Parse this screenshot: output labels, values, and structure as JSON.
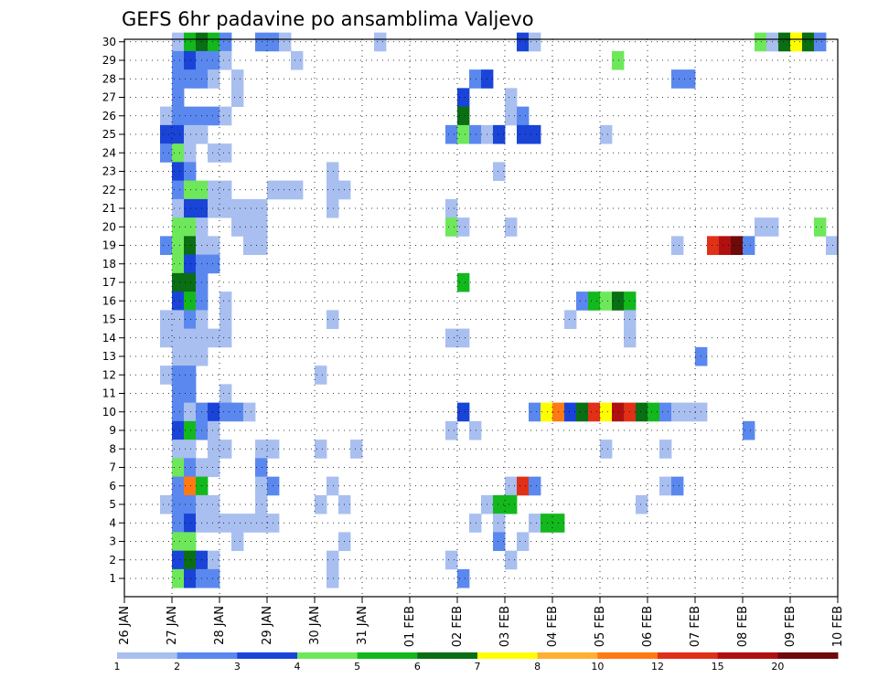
{
  "chart_data": {
    "type": "heatmap",
    "title": "GEFS 6hr padavine po ansamblima Valjevo",
    "xlabel": "",
    "ylabel": "",
    "x_tick_labels": [
      "26 JAN",
      "27 JAN",
      "28 JAN",
      "29 JAN",
      "30 JAN",
      "31 JAN",
      "01 FEB",
      "02 FEB",
      "03 FEB",
      "04 FEB",
      "05 FEB",
      "06 FEB",
      "07 FEB",
      "08 FEB",
      "09 FEB",
      "10 FEB"
    ],
    "y_range": [
      1,
      30
    ],
    "x_steps": 60,
    "x_step_hours": 6,
    "grid": true,
    "legend": {
      "position": "bottom",
      "labels": [
        "1",
        "2",
        "3",
        "4",
        "5",
        "6",
        "7",
        "8",
        "10",
        "12",
        "15",
        "20"
      ],
      "colors": [
        "#a8bff0",
        "#5a88ee",
        "#1a44d8",
        "#6ee85a",
        "#12b81c",
        "#0a6e14",
        "#ffff00",
        "#ffb030",
        "#ff7a14",
        "#e03018",
        "#b01010",
        "#6e0a0a"
      ]
    },
    "cells": [
      [
        30,
        4,
        1
      ],
      [
        30,
        5,
        5
      ],
      [
        30,
        6,
        6
      ],
      [
        30,
        7,
        5
      ],
      [
        30,
        8,
        2
      ],
      [
        30,
        11,
        2
      ],
      [
        30,
        12,
        2
      ],
      [
        30,
        13,
        1
      ],
      [
        30,
        21,
        1
      ],
      [
        30,
        33,
        3
      ],
      [
        30,
        34,
        1
      ],
      [
        30,
        53,
        4
      ],
      [
        30,
        54,
        1
      ],
      [
        30,
        55,
        6
      ],
      [
        30,
        56,
        7
      ],
      [
        30,
        57,
        6
      ],
      [
        30,
        58,
        2
      ],
      [
        29,
        4,
        2
      ],
      [
        29,
        5,
        3
      ],
      [
        29,
        6,
        2
      ],
      [
        29,
        7,
        2
      ],
      [
        29,
        8,
        1
      ],
      [
        29,
        14,
        1
      ],
      [
        29,
        41,
        4
      ],
      [
        28,
        4,
        2
      ],
      [
        28,
        5,
        2
      ],
      [
        28,
        6,
        2
      ],
      [
        28,
        7,
        1
      ],
      [
        28,
        9,
        1
      ],
      [
        28,
        29,
        2
      ],
      [
        28,
        30,
        3
      ],
      [
        28,
        46,
        2
      ],
      [
        28,
        47,
        2
      ],
      [
        27,
        4,
        2
      ],
      [
        27,
        9,
        1
      ],
      [
        27,
        28,
        3
      ],
      [
        27,
        32,
        1
      ],
      [
        26,
        3,
        1
      ],
      [
        26,
        4,
        2
      ],
      [
        26,
        5,
        2
      ],
      [
        26,
        6,
        2
      ],
      [
        26,
        7,
        2
      ],
      [
        26,
        8,
        1
      ],
      [
        26,
        28,
        6
      ],
      [
        26,
        32,
        1
      ],
      [
        26,
        33,
        2
      ],
      [
        25,
        3,
        3
      ],
      [
        25,
        4,
        3
      ],
      [
        25,
        5,
        1
      ],
      [
        25,
        6,
        1
      ],
      [
        25,
        27,
        2
      ],
      [
        25,
        28,
        4
      ],
      [
        25,
        29,
        2
      ],
      [
        25,
        30,
        1
      ],
      [
        25,
        31,
        3
      ],
      [
        25,
        33,
        3
      ],
      [
        25,
        34,
        3
      ],
      [
        25,
        40,
        1
      ],
      [
        24,
        3,
        2
      ],
      [
        24,
        4,
        4
      ],
      [
        24,
        5,
        1
      ],
      [
        24,
        7,
        1
      ],
      [
        24,
        8,
        1
      ],
      [
        23,
        4,
        3
      ],
      [
        23,
        5,
        2
      ],
      [
        23,
        17,
        1
      ],
      [
        23,
        31,
        1
      ],
      [
        22,
        4,
        2
      ],
      [
        22,
        5,
        4
      ],
      [
        22,
        6,
        4
      ],
      [
        22,
        7,
        1
      ],
      [
        22,
        8,
        1
      ],
      [
        22,
        12,
        1
      ],
      [
        22,
        13,
        1
      ],
      [
        22,
        14,
        1
      ],
      [
        22,
        17,
        1
      ],
      [
        22,
        18,
        1
      ],
      [
        21,
        4,
        1
      ],
      [
        21,
        5,
        3
      ],
      [
        21,
        6,
        3
      ],
      [
        21,
        7,
        1
      ],
      [
        21,
        8,
        1
      ],
      [
        21,
        9,
        1
      ],
      [
        21,
        10,
        1
      ],
      [
        21,
        11,
        1
      ],
      [
        21,
        17,
        1
      ],
      [
        21,
        27,
        1
      ],
      [
        20,
        4,
        4
      ],
      [
        20,
        5,
        4
      ],
      [
        20,
        6,
        1
      ],
      [
        20,
        9,
        1
      ],
      [
        20,
        10,
        1
      ],
      [
        20,
        11,
        1
      ],
      [
        20,
        27,
        4
      ],
      [
        20,
        28,
        1
      ],
      [
        20,
        32,
        1
      ],
      [
        20,
        53,
        1
      ],
      [
        20,
        54,
        1
      ],
      [
        20,
        58,
        4
      ],
      [
        19,
        3,
        2
      ],
      [
        19,
        4,
        4
      ],
      [
        19,
        5,
        6
      ],
      [
        19,
        6,
        1
      ],
      [
        19,
        7,
        1
      ],
      [
        19,
        10,
        1
      ],
      [
        19,
        11,
        1
      ],
      [
        19,
        46,
        1
      ],
      [
        19,
        49,
        10
      ],
      [
        19,
        50,
        11
      ],
      [
        19,
        51,
        12
      ],
      [
        19,
        52,
        2
      ],
      [
        19,
        59,
        1
      ],
      [
        18,
        4,
        4
      ],
      [
        18,
        5,
        3
      ],
      [
        18,
        6,
        2
      ],
      [
        18,
        7,
        2
      ],
      [
        17,
        4,
        6
      ],
      [
        17,
        5,
        6
      ],
      [
        17,
        6,
        2
      ],
      [
        17,
        28,
        5
      ],
      [
        16,
        4,
        3
      ],
      [
        16,
        5,
        5
      ],
      [
        16,
        6,
        2
      ],
      [
        16,
        8,
        1
      ],
      [
        16,
        38,
        2
      ],
      [
        16,
        39,
        5
      ],
      [
        16,
        40,
        4
      ],
      [
        16,
        41,
        6
      ],
      [
        16,
        42,
        5
      ],
      [
        15,
        3,
        1
      ],
      [
        15,
        4,
        1
      ],
      [
        15,
        5,
        2
      ],
      [
        15,
        6,
        1
      ],
      [
        15,
        8,
        1
      ],
      [
        15,
        17,
        1
      ],
      [
        15,
        37,
        1
      ],
      [
        15,
        42,
        1
      ],
      [
        14,
        3,
        1
      ],
      [
        14,
        4,
        1
      ],
      [
        14,
        5,
        1
      ],
      [
        14,
        6,
        1
      ],
      [
        14,
        7,
        1
      ],
      [
        14,
        8,
        1
      ],
      [
        14,
        27,
        1
      ],
      [
        14,
        28,
        1
      ],
      [
        14,
        42,
        1
      ],
      [
        13,
        4,
        1
      ],
      [
        13,
        5,
        1
      ],
      [
        13,
        6,
        1
      ],
      [
        13,
        48,
        2
      ],
      [
        12,
        3,
        1
      ],
      [
        12,
        4,
        2
      ],
      [
        12,
        5,
        2
      ],
      [
        12,
        16,
        1
      ],
      [
        11,
        4,
        2
      ],
      [
        11,
        5,
        2
      ],
      [
        11,
        8,
        1
      ],
      [
        10,
        4,
        2
      ],
      [
        10,
        5,
        1
      ],
      [
        10,
        6,
        2
      ],
      [
        10,
        7,
        3
      ],
      [
        10,
        8,
        2
      ],
      [
        10,
        9,
        2
      ],
      [
        10,
        10,
        1
      ],
      [
        10,
        28,
        3
      ],
      [
        10,
        34,
        2
      ],
      [
        10,
        35,
        7
      ],
      [
        10,
        36,
        9
      ],
      [
        10,
        37,
        3
      ],
      [
        10,
        38,
        6
      ],
      [
        10,
        39,
        10
      ],
      [
        10,
        40,
        7
      ],
      [
        10,
        41,
        11
      ],
      [
        10,
        42,
        10
      ],
      [
        10,
        43,
        6
      ],
      [
        10,
        44,
        5
      ],
      [
        10,
        45,
        2
      ],
      [
        10,
        46,
        1
      ],
      [
        10,
        47,
        1
      ],
      [
        10,
        48,
        1
      ],
      [
        9,
        4,
        3
      ],
      [
        9,
        5,
        5
      ],
      [
        9,
        6,
        2
      ],
      [
        9,
        7,
        1
      ],
      [
        9,
        27,
        1
      ],
      [
        9,
        29,
        1
      ],
      [
        9,
        52,
        2
      ],
      [
        8,
        4,
        1
      ],
      [
        8,
        5,
        1
      ],
      [
        8,
        7,
        1
      ],
      [
        8,
        8,
        1
      ],
      [
        8,
        11,
        1
      ],
      [
        8,
        12,
        1
      ],
      [
        8,
        16,
        1
      ],
      [
        8,
        19,
        1
      ],
      [
        8,
        40,
        1
      ],
      [
        8,
        45,
        1
      ],
      [
        7,
        4,
        4
      ],
      [
        7,
        5,
        2
      ],
      [
        7,
        6,
        1
      ],
      [
        7,
        7,
        1
      ],
      [
        7,
        11,
        2
      ],
      [
        6,
        4,
        2
      ],
      [
        6,
        5,
        9
      ],
      [
        6,
        6,
        5
      ],
      [
        6,
        11,
        1
      ],
      [
        6,
        12,
        2
      ],
      [
        6,
        17,
        1
      ],
      [
        6,
        32,
        1
      ],
      [
        6,
        33,
        10
      ],
      [
        6,
        34,
        2
      ],
      [
        6,
        45,
        1
      ],
      [
        6,
        46,
        2
      ],
      [
        5,
        3,
        1
      ],
      [
        5,
        4,
        2
      ],
      [
        5,
        5,
        2
      ],
      [
        5,
        6,
        1
      ],
      [
        5,
        7,
        1
      ],
      [
        5,
        11,
        1
      ],
      [
        5,
        16,
        1
      ],
      [
        5,
        18,
        1
      ],
      [
        5,
        30,
        1
      ],
      [
        5,
        31,
        5
      ],
      [
        5,
        32,
        5
      ],
      [
        5,
        43,
        1
      ],
      [
        4,
        4,
        2
      ],
      [
        4,
        5,
        3
      ],
      [
        4,
        6,
        1
      ],
      [
        4,
        7,
        1
      ],
      [
        4,
        8,
        1
      ],
      [
        4,
        9,
        1
      ],
      [
        4,
        10,
        1
      ],
      [
        4,
        11,
        1
      ],
      [
        4,
        12,
        1
      ],
      [
        4,
        29,
        1
      ],
      [
        4,
        31,
        1
      ],
      [
        4,
        34,
        1
      ],
      [
        4,
        35,
        5
      ],
      [
        4,
        36,
        5
      ],
      [
        3,
        4,
        4
      ],
      [
        3,
        5,
        4
      ],
      [
        3,
        9,
        1
      ],
      [
        3,
        18,
        1
      ],
      [
        3,
        31,
        2
      ],
      [
        3,
        33,
        1
      ],
      [
        2,
        4,
        3
      ],
      [
        2,
        5,
        6
      ],
      [
        2,
        6,
        3
      ],
      [
        2,
        7,
        1
      ],
      [
        2,
        17,
        1
      ],
      [
        2,
        27,
        1
      ],
      [
        2,
        32,
        1
      ],
      [
        1,
        4,
        4
      ],
      [
        1,
        5,
        3
      ],
      [
        1,
        6,
        2
      ],
      [
        1,
        7,
        2
      ],
      [
        1,
        17,
        1
      ],
      [
        1,
        28,
        2
      ]
    ]
  }
}
